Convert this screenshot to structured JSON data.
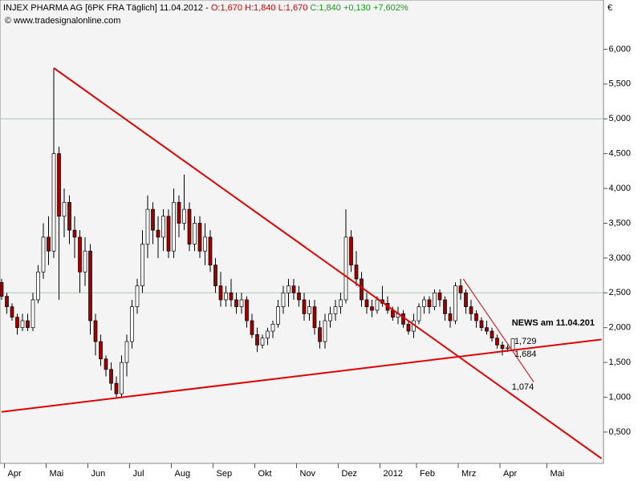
{
  "chart_data": {
    "type": "candlestick",
    "header": [
      {
        "text": "INJEX PHARMA AG [6PK FRA  Täglich] 11.04.2012 - ",
        "color": "#000000"
      },
      {
        "text": "O:1,670 H:1,840 L:1,670 ",
        "color": "#d00000"
      },
      {
        "text": "C:1,840 +0,130 +7,602%",
        "color": "#10a010"
      }
    ],
    "subtitle": "© www.tradesignalonline.com",
    "currency": "€",
    "up_color": "#ffffff",
    "down_color": "#a00000",
    "categories": [
      null,
      "Apr",
      null,
      null,
      null,
      null,
      null,
      null,
      null,
      "Mai",
      null,
      null,
      null,
      null,
      null,
      null,
      null,
      "Jun",
      null,
      null,
      null,
      null,
      null,
      null,
      null,
      "Jul",
      null,
      null,
      null,
      null,
      null,
      null,
      null,
      "Aug",
      null,
      null,
      null,
      null,
      null,
      null,
      null,
      "Sep",
      null,
      null,
      null,
      null,
      null,
      null,
      null,
      "Okt",
      null,
      null,
      null,
      null,
      null,
      null,
      null,
      "Nov",
      null,
      null,
      null,
      null,
      null,
      null,
      null,
      "Dez",
      null,
      null,
      null,
      null,
      null,
      null,
      null,
      "2012",
      null,
      null,
      null,
      null,
      null,
      null,
      "Feb",
      null,
      null,
      null,
      null,
      null,
      null,
      null,
      "Mrz",
      null,
      null,
      null,
      null,
      null,
      null,
      null,
      "Apr",
      null,
      null,
      null,
      null,
      null,
      null,
      null,
      null,
      "Mai",
      null,
      null,
      null,
      null,
      null,
      null,
      null,
      null,
      null,
      null
    ],
    "ohlc": [
      [
        2.65,
        2.7,
        2.4,
        2.45
      ],
      [
        2.45,
        2.5,
        2.2,
        2.3
      ],
      [
        2.3,
        2.35,
        2.1,
        2.15
      ],
      [
        2.15,
        2.2,
        1.9,
        2.0
      ],
      [
        2.0,
        2.2,
        1.95,
        2.1
      ],
      [
        2.1,
        2.2,
        1.95,
        2.0
      ],
      [
        2.0,
        2.5,
        1.95,
        2.4
      ],
      [
        2.4,
        2.9,
        2.35,
        2.8
      ],
      [
        2.8,
        3.5,
        2.7,
        3.3
      ],
      [
        3.3,
        3.6,
        2.9,
        3.1
      ],
      [
        3.1,
        5.73,
        3.0,
        4.5
      ],
      [
        4.5,
        4.6,
        2.4,
        3.6
      ],
      [
        3.6,
        4.0,
        3.3,
        3.8
      ],
      [
        3.8,
        3.9,
        3.2,
        3.4
      ],
      [
        3.4,
        3.6,
        3.0,
        3.3
      ],
      [
        3.3,
        3.4,
        2.5,
        2.8
      ],
      [
        2.8,
        3.3,
        2.6,
        3.1
      ],
      [
        3.1,
        3.2,
        1.9,
        2.1
      ],
      [
        2.1,
        2.2,
        1.6,
        1.8
      ],
      [
        1.8,
        1.9,
        1.45,
        1.55
      ],
      [
        1.55,
        1.6,
        1.3,
        1.4
      ],
      [
        1.4,
        1.5,
        1.1,
        1.2
      ],
      [
        1.2,
        1.3,
        0.98,
        1.05
      ],
      [
        1.05,
        1.6,
        1.0,
        1.5
      ],
      [
        1.5,
        1.9,
        1.3,
        1.8
      ],
      [
        1.8,
        2.4,
        1.7,
        2.3
      ],
      [
        2.3,
        2.7,
        2.2,
        2.6
      ],
      [
        2.6,
        3.4,
        2.5,
        3.2
      ],
      [
        3.2,
        3.9,
        3.0,
        3.7
      ],
      [
        3.7,
        3.8,
        3.2,
        3.4
      ],
      [
        3.4,
        3.6,
        3.0,
        3.3
      ],
      [
        3.3,
        3.7,
        3.1,
        3.6
      ],
      [
        3.6,
        3.7,
        3.0,
        3.1
      ],
      [
        3.1,
        4.0,
        3.0,
        3.8
      ],
      [
        3.8,
        3.9,
        3.3,
        3.5
      ],
      [
        3.5,
        4.2,
        3.4,
        3.7
      ],
      [
        3.7,
        3.8,
        3.1,
        3.2
      ],
      [
        3.2,
        3.6,
        3.1,
        3.5
      ],
      [
        3.5,
        3.6,
        3.0,
        3.1
      ],
      [
        3.1,
        3.5,
        2.9,
        3.3
      ],
      [
        3.3,
        3.4,
        2.8,
        2.9
      ],
      [
        2.9,
        3.0,
        2.5,
        2.6
      ],
      [
        2.6,
        2.8,
        2.3,
        2.4
      ],
      [
        2.4,
        2.6,
        2.3,
        2.5
      ],
      [
        2.5,
        2.7,
        2.3,
        2.4
      ],
      [
        2.4,
        2.5,
        2.2,
        2.3
      ],
      [
        2.3,
        2.5,
        2.2,
        2.4
      ],
      [
        2.4,
        2.45,
        2.0,
        2.1
      ],
      [
        2.1,
        2.2,
        1.85,
        1.9
      ],
      [
        1.9,
        2.0,
        1.65,
        1.75
      ],
      [
        1.75,
        1.9,
        1.7,
        1.85
      ],
      [
        1.85,
        2.0,
        1.75,
        1.95
      ],
      [
        1.95,
        2.1,
        1.85,
        2.05
      ],
      [
        2.05,
        2.4,
        2.0,
        2.3
      ],
      [
        2.3,
        2.6,
        2.2,
        2.5
      ],
      [
        2.5,
        2.7,
        2.3,
        2.6
      ],
      [
        2.6,
        2.7,
        2.4,
        2.5
      ],
      [
        2.5,
        2.6,
        2.3,
        2.4
      ],
      [
        2.4,
        2.5,
        2.1,
        2.2
      ],
      [
        2.2,
        2.4,
        2.1,
        2.3
      ],
      [
        2.3,
        2.4,
        1.9,
        2.0
      ],
      [
        2.0,
        2.1,
        1.7,
        1.8
      ],
      [
        1.8,
        2.2,
        1.7,
        2.1
      ],
      [
        2.1,
        2.3,
        2.0,
        2.2
      ],
      [
        2.2,
        2.4,
        2.1,
        2.3
      ],
      [
        2.3,
        2.5,
        2.2,
        2.4
      ],
      [
        2.4,
        3.7,
        2.35,
        3.3
      ],
      [
        3.3,
        3.4,
        2.8,
        2.9
      ],
      [
        2.9,
        3.1,
        2.6,
        2.7
      ],
      [
        2.7,
        2.8,
        2.3,
        2.4
      ],
      [
        2.4,
        2.5,
        2.2,
        2.3
      ],
      [
        2.3,
        2.4,
        2.15,
        2.25
      ],
      [
        2.25,
        2.45,
        2.2,
        2.4
      ],
      [
        2.4,
        2.6,
        2.3,
        2.35
      ],
      [
        2.35,
        2.45,
        2.2,
        2.25
      ],
      [
        2.25,
        2.3,
        2.1,
        2.15
      ],
      [
        2.15,
        2.3,
        2.05,
        2.2
      ],
      [
        2.2,
        2.25,
        2.0,
        2.05
      ],
      [
        2.05,
        2.1,
        1.9,
        1.95
      ],
      [
        1.95,
        2.2,
        1.85,
        2.1
      ],
      [
        2.1,
        2.35,
        2.05,
        2.3
      ],
      [
        2.3,
        2.45,
        2.2,
        2.4
      ],
      [
        2.4,
        2.45,
        2.2,
        2.3
      ],
      [
        2.3,
        2.55,
        2.25,
        2.5
      ],
      [
        2.5,
        2.55,
        2.3,
        2.4
      ],
      [
        2.4,
        2.45,
        2.1,
        2.2
      ],
      [
        2.2,
        2.3,
        2.0,
        2.1
      ],
      [
        2.1,
        2.65,
        2.05,
        2.6
      ],
      [
        2.6,
        2.7,
        2.4,
        2.5
      ],
      [
        2.5,
        2.55,
        2.2,
        2.3
      ],
      [
        2.3,
        2.4,
        2.1,
        2.2
      ],
      [
        2.2,
        2.25,
        2.0,
        2.1
      ],
      [
        2.1,
        2.15,
        1.95,
        2.0
      ],
      [
        2.0,
        2.1,
        1.9,
        1.95
      ],
      [
        1.95,
        2.0,
        1.8,
        1.85
      ],
      [
        1.85,
        1.9,
        1.7,
        1.75
      ],
      [
        1.75,
        1.8,
        1.6,
        1.7
      ],
      [
        1.7,
        1.75,
        1.65,
        1.71
      ],
      [
        1.67,
        1.84,
        1.67,
        1.84
      ],
      null,
      null,
      null,
      null,
      null,
      null,
      null,
      null,
      null,
      null,
      null,
      null,
      null,
      null,
      null,
      null,
      null
    ],
    "ylim": [
      0.05,
      6.65
    ],
    "yticks": [
      {
        "value": 0.5,
        "label": "0,500"
      },
      {
        "value": 1,
        "label": "1,000"
      },
      {
        "value": 1.5,
        "label": "1,500"
      },
      {
        "value": 2,
        "label": "2,000"
      },
      {
        "value": 2.5,
        "label": "2,500"
      },
      {
        "value": 3,
        "label": "3,000"
      },
      {
        "value": 3.5,
        "label": "3,500"
      },
      {
        "value": 4,
        "label": "4,000"
      },
      {
        "value": 4.5,
        "label": "4,500"
      },
      {
        "value": 5,
        "label": "5,000"
      },
      {
        "value": 5.5,
        "label": "5,500"
      },
      {
        "value": 6,
        "label": "6,000"
      }
    ],
    "hlines": [
      5,
      2.5
    ],
    "trendlines": [
      {
        "x": [
          10,
          115
        ],
        "y": [
          5.73,
          0.12
        ],
        "color": "#e00000"
      },
      {
        "x": [
          0,
          115
        ],
        "y": [
          0.79,
          1.83
        ],
        "color": "#e00000"
      },
      {
        "x": [
          88.5,
          102
        ],
        "y": [
          2.7,
          1.22
        ],
        "color": "#e00000"
      }
    ],
    "annotations": [
      {
        "text": "NEWS am 11.04.201",
        "x": 97.8,
        "y": 2.065,
        "color": "#c8102e",
        "bold": true
      },
      {
        "text": "1,729",
        "x": 98.3,
        "y": 1.8,
        "color": "#d00000"
      },
      {
        "text": "1,684",
        "x": 98.3,
        "y": 1.616,
        "color": "#d00000"
      },
      {
        "text": "1,074",
        "x": 97.8,
        "y": 1.144,
        "color": "#d00000"
      }
    ]
  }
}
